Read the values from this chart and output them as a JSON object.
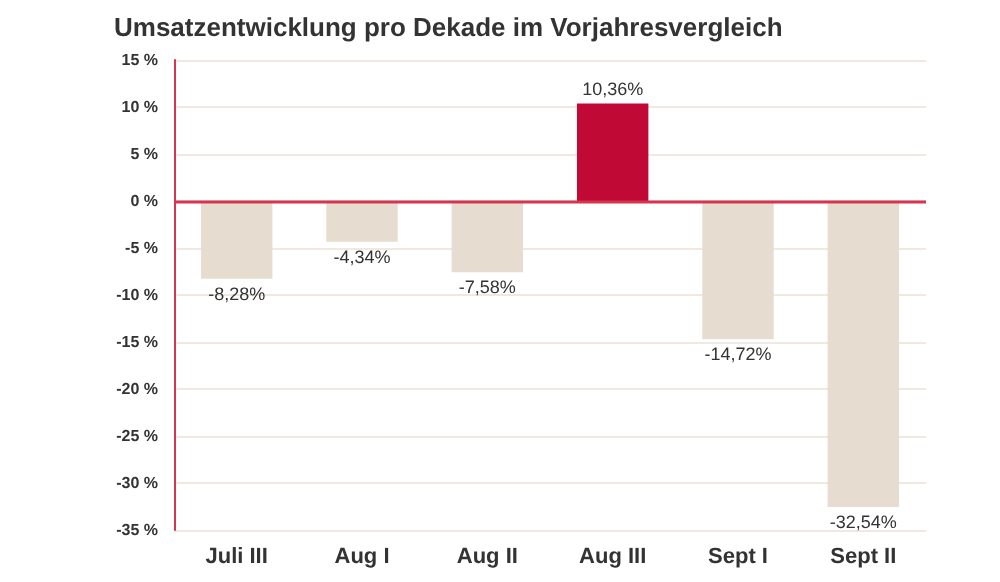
{
  "chart_data": {
    "type": "bar",
    "title": "Umsatzentwicklung pro Dekade im Vorjahresvergleich",
    "categories": [
      "Juli III",
      "Aug I",
      "Aug II",
      "Aug III",
      "Sept I",
      "Sept II"
    ],
    "values": [
      -8.28,
      -4.34,
      -7.58,
      10.36,
      -14.72,
      -32.54
    ],
    "colors": [
      "#e6ddd0",
      "#e6ddd0",
      "#e6ddd0",
      "#c00a35",
      "#e6ddd0",
      "#e6ddd0"
    ],
    "value_labels": [
      "-8,28%",
      "-4,34%",
      "-7,58%",
      "10,36%",
      "-14,72%",
      "-32,54%"
    ],
    "ylim": [
      -35,
      15
    ],
    "yticks": [
      {
        "value": -35,
        "label": "-35 %"
      },
      {
        "value": -30,
        "label": "-30 %"
      },
      {
        "value": -25,
        "label": "-25 %"
      },
      {
        "value": -20,
        "label": "-20 %"
      },
      {
        "value": -15,
        "label": "-15 %"
      },
      {
        "value": -10,
        "label": "-10 %"
      },
      {
        "value": -5,
        "label": "-5 %"
      },
      {
        "value": 0,
        "label": "0 %"
      },
      {
        "value": 5,
        "label": "5 %"
      },
      {
        "value": 10,
        "label": "10 %"
      },
      {
        "value": 15,
        "label": "15 %"
      }
    ],
    "ref_lines": [
      {
        "axis": "y",
        "value": 0,
        "color": "#d6344f"
      }
    ],
    "grid": "y"
  }
}
